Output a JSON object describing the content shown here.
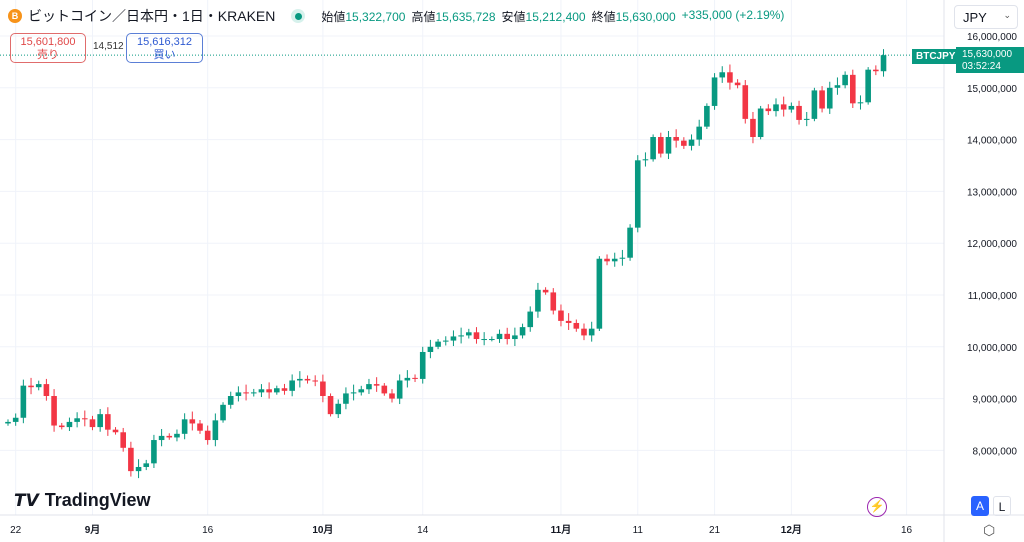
{
  "header": {
    "title": "ビットコイン／日本円・1日・KRAKEN",
    "coin_icon": "B",
    "ohlc": [
      {
        "label": "始値",
        "value": "15,322,700"
      },
      {
        "label": "高値",
        "value": "15,635,728"
      },
      {
        "label": "安値",
        "value": "15,212,400"
      },
      {
        "label": "終値",
        "value": "15,630,000"
      }
    ],
    "change": "+335,000 (+2.19%)"
  },
  "trade": {
    "sell_price": "15,601,800",
    "sell_label": "売り",
    "spread": "14,512",
    "buy_price": "15,616,312",
    "buy_label": "買い"
  },
  "currency": "JPY",
  "symbol_tag": "BTCJPY",
  "last_price": "15,630,000",
  "countdown": "03:52:24",
  "logo": "TradingView",
  "scale_buttons": {
    "auto": "A",
    "log": "L"
  },
  "colors": {
    "up": "#089981",
    "down": "#f23645",
    "grid": "#f0f3fa"
  },
  "chart_data": {
    "type": "candlestick",
    "ylim": [
      7500000,
      16200000
    ],
    "yticks": [
      "16,000,000",
      "15,000,000",
      "14,000,000",
      "13,000,000",
      "12,000,000",
      "11,000,000",
      "10,000,000",
      "9,000,000",
      "8,000,000"
    ],
    "ytick_values": [
      16000000,
      15000000,
      14000000,
      13000000,
      12000000,
      11000000,
      10000000,
      9000000,
      8000000
    ],
    "xticks": [
      {
        "label": "22",
        "i": 1
      },
      {
        "label": "9月",
        "i": 11
      },
      {
        "label": "16",
        "i": 26
      },
      {
        "label": "10月",
        "i": 41
      },
      {
        "label": "14",
        "i": 54
      },
      {
        "label": "11月",
        "i": 72
      },
      {
        "label": "11",
        "i": 82
      },
      {
        "label": "21",
        "i": 92
      },
      {
        "label": "12月",
        "i": 102
      },
      {
        "label": "16",
        "i": 117
      }
    ],
    "first_open": 8.52,
    "closes_millions": [
      8.55,
      8.63,
      9.25,
      9.22,
      9.28,
      9.05,
      8.48,
      8.45,
      8.55,
      8.62,
      8.6,
      8.45,
      8.7,
      8.4,
      8.35,
      8.05,
      7.6,
      7.68,
      7.75,
      8.2,
      8.28,
      8.25,
      8.32,
      8.6,
      8.52,
      8.38,
      8.2,
      8.58,
      8.88,
      9.05,
      9.12,
      9.1,
      9.12,
      9.18,
      9.12,
      9.2,
      9.15,
      9.35,
      9.38,
      9.35,
      9.33,
      9.05,
      8.7,
      8.9,
      9.1,
      9.12,
      9.18,
      9.28,
      9.25,
      9.1,
      9.0,
      9.35,
      9.4,
      9.38,
      9.9,
      10.0,
      10.1,
      10.12,
      10.2,
      10.22,
      10.28,
      10.15,
      10.15,
      10.15,
      10.25,
      10.15,
      10.22,
      10.38,
      10.68,
      11.1,
      11.05,
      10.7,
      10.5,
      10.46,
      10.35,
      10.22,
      10.35,
      11.7,
      11.65,
      11.7,
      11.72,
      12.3,
      13.6,
      13.62,
      14.05,
      13.73,
      14.05,
      13.98,
      13.88,
      14.0,
      14.25,
      14.65,
      15.2,
      15.3,
      15.1,
      15.05,
      14.4,
      14.05,
      14.6,
      14.55,
      14.68,
      14.58,
      14.65,
      14.38,
      14.4,
      14.95,
      14.6,
      15.0,
      15.05,
      15.25,
      14.7,
      14.72,
      15.35,
      15.32,
      15.63
    ]
  }
}
